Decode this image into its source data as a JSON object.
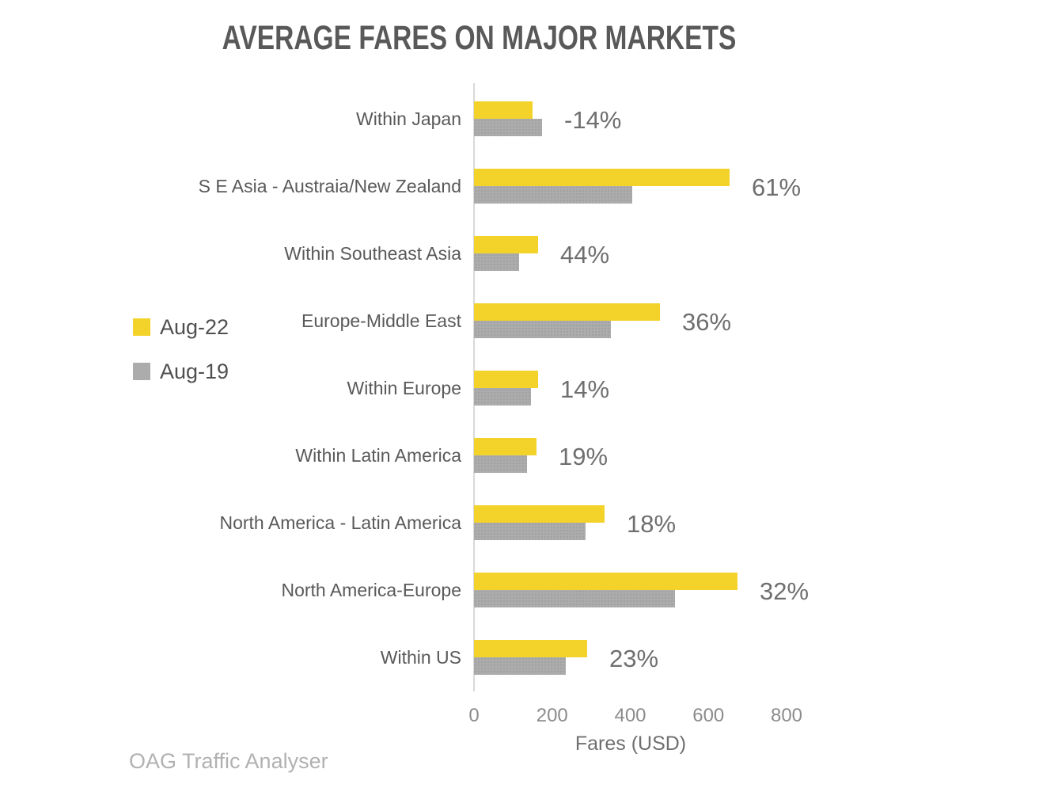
{
  "title": "AVERAGE FARES ON MAJOR MARKETS",
  "source": "OAG Traffic Analyser",
  "legend": [
    {
      "label": "Aug-22",
      "color": "#F3D229"
    },
    {
      "label": "Aug-19",
      "color": "#ACACAC"
    }
  ],
  "chart_data": {
    "type": "bar",
    "orientation": "horizontal",
    "title": "AVERAGE FARES ON MAJOR MARKETS",
    "xlabel": "Fares (USD)",
    "xlim": [
      0,
      800
    ],
    "x_ticks": [
      0,
      200,
      400,
      600,
      800
    ],
    "grid": false,
    "legend_position": "left",
    "categories": [
      "Within Japan",
      "S E Asia - Austraia/New Zealand",
      "Within Southeast Asia",
      "Europe-Middle East",
      "Within Europe",
      "Within Latin America",
      "North America - Latin America",
      "North America-Europe",
      "Within US"
    ],
    "series": [
      {
        "name": "Aug-22",
        "color": "#F3D229",
        "values": [
          150,
          655,
          165,
          475,
          165,
          160,
          335,
          675,
          290
        ]
      },
      {
        "name": "Aug-19",
        "color": "#ACACAC",
        "values": [
          175,
          405,
          115,
          350,
          145,
          135,
          285,
          515,
          235
        ]
      }
    ],
    "pct_change_labels": [
      "-14%",
      "61%",
      "44%",
      "36%",
      "14%",
      "19%",
      "18%",
      "32%",
      "23%"
    ]
  }
}
